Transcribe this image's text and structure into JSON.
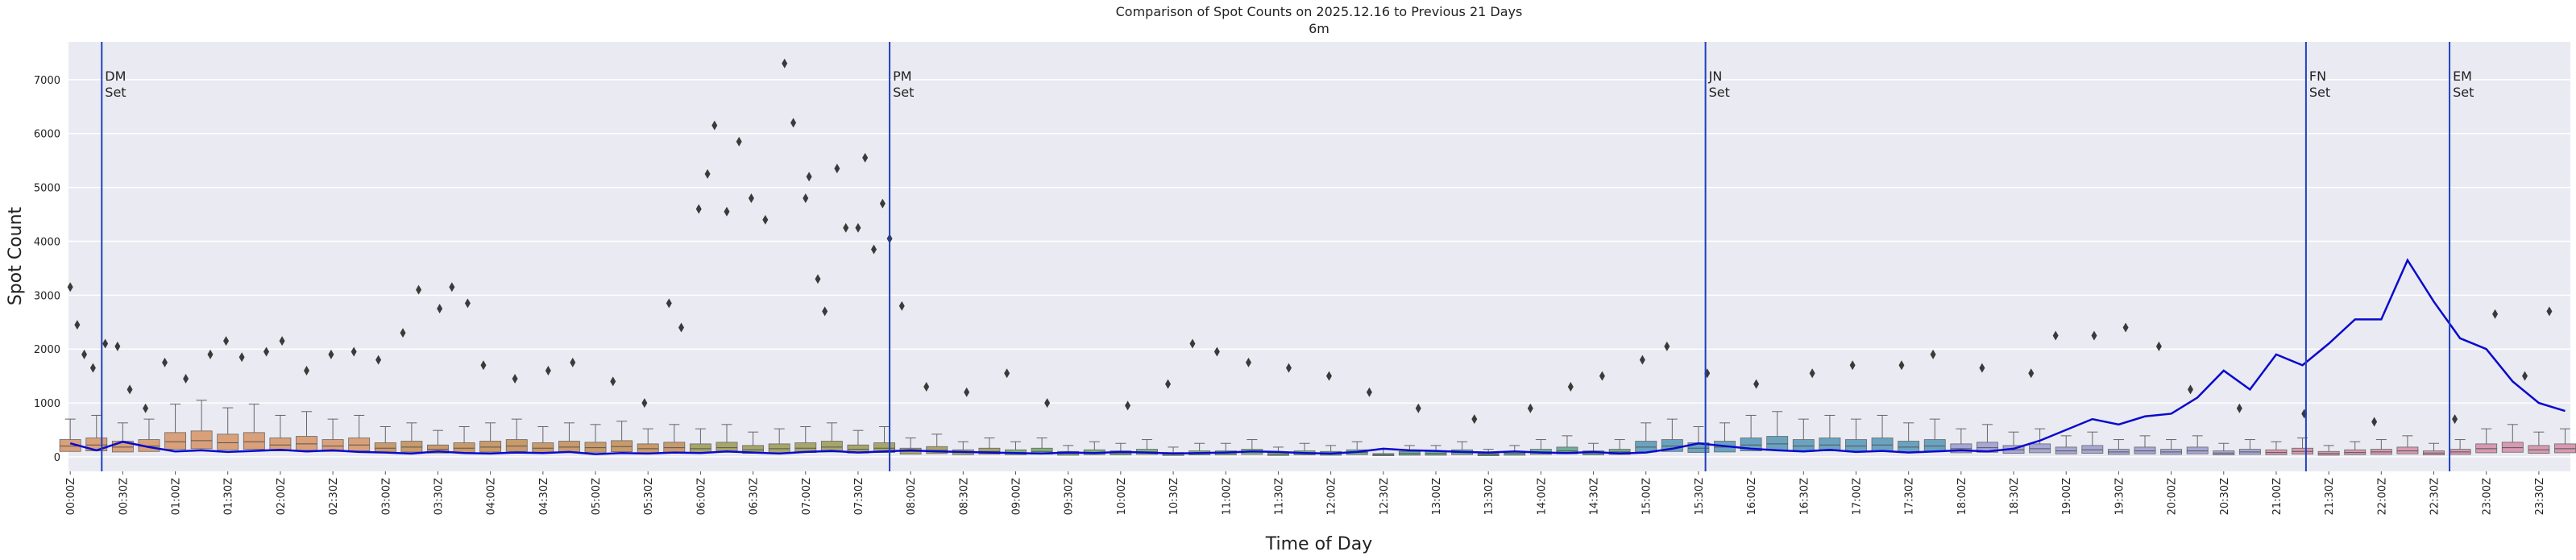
{
  "chart_data": {
    "type": "box",
    "title": "Comparison of Spot Counts on 2025.12.16 to Previous 21 Days",
    "subtitle": "6m",
    "x_label": "Time of Day",
    "y_label": "Spot Count",
    "xlim": [
      -1,
      1428
    ],
    "ylim": [
      -270,
      7700
    ],
    "yticks": [
      0,
      1000,
      2000,
      3000,
      4000,
      5000,
      6000,
      7000
    ],
    "xticks": [
      {
        "value": 0,
        "label": "00:00Z"
      },
      {
        "value": 30,
        "label": "00:30Z"
      },
      {
        "value": 60,
        "label": "01:00Z"
      },
      {
        "value": 90,
        "label": "01:30Z"
      },
      {
        "value": 120,
        "label": "02:00Z"
      },
      {
        "value": 150,
        "label": "02:30Z"
      },
      {
        "value": 180,
        "label": "03:00Z"
      },
      {
        "value": 210,
        "label": "03:30Z"
      },
      {
        "value": 240,
        "label": "04:00Z"
      },
      {
        "value": 270,
        "label": "04:30Z"
      },
      {
        "value": 300,
        "label": "05:00Z"
      },
      {
        "value": 330,
        "label": "05:30Z"
      },
      {
        "value": 360,
        "label": "06:00Z"
      },
      {
        "value": 390,
        "label": "06:30Z"
      },
      {
        "value": 420,
        "label": "07:00Z"
      },
      {
        "value": 450,
        "label": "07:30Z"
      },
      {
        "value": 480,
        "label": "08:00Z"
      },
      {
        "value": 510,
        "label": "08:30Z"
      },
      {
        "value": 540,
        "label": "09:00Z"
      },
      {
        "value": 570,
        "label": "09:30Z"
      },
      {
        "value": 600,
        "label": "10:00Z"
      },
      {
        "value": 630,
        "label": "10:30Z"
      },
      {
        "value": 660,
        "label": "11:00Z"
      },
      {
        "value": 690,
        "label": "11:30Z"
      },
      {
        "value": 720,
        "label": "12:00Z"
      },
      {
        "value": 750,
        "label": "12:30Z"
      },
      {
        "value": 780,
        "label": "13:00Z"
      },
      {
        "value": 810,
        "label": "13:30Z"
      },
      {
        "value": 840,
        "label": "14:00Z"
      },
      {
        "value": 870,
        "label": "14:30Z"
      },
      {
        "value": 900,
        "label": "15:00Z"
      },
      {
        "value": 930,
        "label": "15:30Z"
      },
      {
        "value": 960,
        "label": "16:00Z"
      },
      {
        "value": 990,
        "label": "16:30Z"
      },
      {
        "value": 1020,
        "label": "17:00Z"
      },
      {
        "value": 1050,
        "label": "17:30Z"
      },
      {
        "value": 1080,
        "label": "18:00Z"
      },
      {
        "value": 1110,
        "label": "18:30Z"
      },
      {
        "value": 1140,
        "label": "19:00Z"
      },
      {
        "value": 1170,
        "label": "19:30Z"
      },
      {
        "value": 1200,
        "label": "20:00Z"
      },
      {
        "value": 1230,
        "label": "20:30Z"
      },
      {
        "value": 1260,
        "label": "21:00Z"
      },
      {
        "value": 1290,
        "label": "21:30Z"
      },
      {
        "value": 1320,
        "label": "22:00Z"
      },
      {
        "value": 1350,
        "label": "22:30Z"
      },
      {
        "value": 1380,
        "label": "23:00Z"
      },
      {
        "value": 1410,
        "label": "23:30Z"
      }
    ],
    "grid": true,
    "palette": [
      "#d9a07a",
      "#c99a6a",
      "#a7a66a",
      "#7fb27a",
      "#6fae94",
      "#6aa3c0",
      "#a7a7d6",
      "#d89ab0"
    ],
    "boxes": {
      "x": [
        0,
        15,
        30,
        45,
        60,
        75,
        90,
        105,
        120,
        135,
        150,
        165,
        180,
        195,
        210,
        225,
        240,
        255,
        270,
        285,
        300,
        315,
        330,
        345,
        360,
        375,
        390,
        405,
        420,
        435,
        450,
        465,
        480,
        495,
        510,
        525,
        540,
        555,
        570,
        585,
        600,
        615,
        630,
        645,
        660,
        675,
        690,
        705,
        720,
        735,
        750,
        765,
        780,
        795,
        810,
        825,
        840,
        855,
        870,
        885,
        900,
        915,
        930,
        945,
        960,
        975,
        990,
        1005,
        1020,
        1035,
        1050,
        1065,
        1080,
        1095,
        1110,
        1125,
        1140,
        1155,
        1170,
        1185,
        1200,
        1215,
        1230,
        1245,
        1260,
        1275,
        1290,
        1305,
        1320,
        1335,
        1350,
        1365,
        1380,
        1395,
        1410,
        1425
      ],
      "q1": [
        100,
        110,
        90,
        100,
        140,
        150,
        130,
        140,
        110,
        120,
        100,
        110,
        80,
        90,
        70,
        80,
        90,
        100,
        80,
        90,
        85,
        95,
        75,
        85,
        75,
        85,
        65,
        75,
        80,
        90,
        70,
        80,
        50,
        60,
        40,
        50,
        40,
        50,
        30,
        40,
        35,
        45,
        25,
        35,
        35,
        45,
        25,
        35,
        30,
        40,
        20,
        30,
        30,
        40,
        20,
        30,
        45,
        55,
        35,
        45,
        90,
        100,
        80,
        90,
        110,
        120,
        100,
        110,
        100,
        110,
        90,
        100,
        75,
        85,
        65,
        75,
        55,
        65,
        45,
        55,
        45,
        55,
        35,
        45,
        40,
        50,
        30,
        40,
        45,
        55,
        35,
        45,
        75,
        85,
        65,
        75
      ],
      "median": [
        200,
        220,
        180,
        200,
        280,
        300,
        260,
        280,
        220,
        240,
        200,
        220,
        160,
        180,
        140,
        160,
        180,
        200,
        160,
        180,
        170,
        190,
        150,
        170,
        150,
        170,
        130,
        150,
        160,
        180,
        140,
        160,
        100,
        120,
        80,
        100,
        80,
        100,
        60,
        80,
        70,
        90,
        50,
        70,
        70,
        90,
        50,
        70,
        60,
        80,
        40,
        60,
        60,
        80,
        40,
        60,
        90,
        110,
        70,
        90,
        180,
        200,
        160,
        180,
        220,
        240,
        200,
        220,
        200,
        220,
        180,
        200,
        150,
        170,
        130,
        150,
        110,
        130,
        90,
        110,
        90,
        110,
        70,
        90,
        80,
        100,
        60,
        80,
        90,
        110,
        70,
        90,
        150,
        170,
        130,
        150
      ],
      "q3": [
        320,
        350,
        290,
        320,
        450,
        480,
        420,
        450,
        350,
        380,
        320,
        350,
        260,
        290,
        220,
        260,
        290,
        320,
        260,
        290,
        270,
        300,
        240,
        270,
        240,
        270,
        210,
        240,
        260,
        290,
        220,
        260,
        160,
        190,
        130,
        160,
        130,
        160,
        100,
        130,
        110,
        140,
        80,
        110,
        110,
        140,
        80,
        110,
        100,
        130,
        60,
        100,
        100,
        130,
        60,
        100,
        140,
        180,
        110,
        140,
        290,
        320,
        260,
        290,
        350,
        380,
        320,
        350,
        320,
        350,
        290,
        320,
        240,
        270,
        210,
        240,
        180,
        210,
        140,
        180,
        140,
        180,
        110,
        140,
        130,
        160,
        100,
        130,
        140,
        180,
        110,
        140,
        240,
        270,
        210,
        240
      ],
      "whisker_high": [
        700,
        770,
        630,
        700,
        980,
        1050,
        910,
        980,
        770,
        840,
        700,
        770,
        560,
        630,
        490,
        560,
        630,
        700,
        560,
        630,
        600,
        660,
        520,
        600,
        520,
        600,
        460,
        520,
        560,
        630,
        490,
        560,
        350,
        420,
        280,
        350,
        280,
        350,
        210,
        280,
        250,
        320,
        180,
        250,
        250,
        320,
        180,
        250,
        210,
        280,
        140,
        210,
        210,
        280,
        140,
        210,
        320,
        390,
        250,
        320,
        630,
        700,
        560,
        630,
        770,
        840,
        700,
        770,
        700,
        770,
        630,
        700,
        520,
        600,
        460,
        520,
        390,
        460,
        320,
        390,
        320,
        390,
        250,
        320,
        280,
        350,
        210,
        280,
        320,
        390,
        250,
        320,
        520,
        600,
        460,
        520
      ]
    },
    "outliers": {
      "x": [
        0,
        4,
        8,
        13,
        20,
        27,
        34,
        43,
        54,
        66,
        80,
        89,
        98,
        112,
        121,
        135,
        149,
        162,
        176,
        190,
        199,
        211,
        218,
        227,
        236,
        254,
        273,
        287,
        310,
        328,
        342,
        349,
        359,
        364,
        368,
        375,
        382,
        389,
        397,
        408,
        413,
        420,
        422,
        427,
        431,
        438,
        443,
        450,
        454,
        459,
        464,
        468,
        475,
        489,
        512,
        535,
        558,
        604,
        627,
        641,
        655,
        673,
        696,
        719,
        742,
        770,
        802,
        834,
        857,
        875,
        898,
        912,
        935,
        963,
        995,
        1018,
        1046,
        1064,
        1092,
        1120,
        1134,
        1156,
        1174,
        1193,
        1211,
        1239,
        1276,
        1316,
        1362,
        1385,
        1402,
        1416
      ],
      "y": [
        3150,
        2450,
        1900,
        1650,
        2100,
        2050,
        1250,
        900,
        1750,
        1450,
        1900,
        2150,
        1850,
        1950,
        2150,
        1600,
        1900,
        1950,
        1800,
        2300,
        3100,
        2750,
        3150,
        2850,
        1700,
        1450,
        1600,
        1750,
        1400,
        1000,
        2850,
        2400,
        4600,
        5250,
        6150,
        4550,
        5850,
        4800,
        4400,
        7300,
        6200,
        4800,
        5200,
        3300,
        2700,
        5350,
        4250,
        4250,
        5550,
        3850,
        4700,
        4050,
        2800,
        1300,
        1200,
        1550,
        1000,
        950,
        1350,
        2100,
        1950,
        1750,
        1650,
        1500,
        1200,
        900,
        700,
        900,
        1300,
        1500,
        1800,
        2050,
        1550,
        1350,
        1550,
        1700,
        1700,
        1900,
        1650,
        1550,
        2250,
        2250,
        2400,
        2050,
        1250,
        900,
        800,
        650,
        700,
        2650,
        1500,
        2700
      ]
    },
    "line": {
      "color": "#0a0acc",
      "values": [
        250,
        120,
        280,
        180,
        100,
        120,
        90,
        110,
        130,
        100,
        120,
        90,
        80,
        60,
        100,
        70,
        60,
        80,
        70,
        90,
        50,
        70,
        60,
        80,
        70,
        100,
        80,
        60,
        90,
        110,
        80,
        100,
        120,
        100,
        90,
        80,
        70,
        60,
        80,
        70,
        90,
        80,
        60,
        70,
        80,
        100,
        90,
        70,
        60,
        90,
        150,
        120,
        110,
        90,
        80,
        100,
        80,
        70,
        90,
        60,
        80,
        150,
        250,
        200,
        150,
        120,
        100,
        130,
        90,
        110,
        80,
        100,
        120,
        100,
        150,
        300,
        500,
        700,
        600,
        750,
        800,
        1100,
        1600,
        1250,
        1900,
        1700,
        2100,
        2550,
        2550,
        3650,
        2880,
        2200,
        2000,
        1400,
        1000,
        850
      ]
    },
    "annotations": [
      {
        "x": 18,
        "lines": [
          "DM",
          "Set"
        ],
        "color": "#2040c0"
      },
      {
        "x": 468,
        "lines": [
          "PM",
          "Set"
        ],
        "color": "#2040c0"
      },
      {
        "x": 934,
        "lines": [
          "JN",
          "Set"
        ],
        "color": "#2040c0"
      },
      {
        "x": 1277,
        "lines": [
          "FN",
          "Set"
        ],
        "color": "#2040c0"
      },
      {
        "x": 1359,
        "lines": [
          "EM",
          "Set"
        ],
        "color": "#2040c0"
      }
    ]
  }
}
